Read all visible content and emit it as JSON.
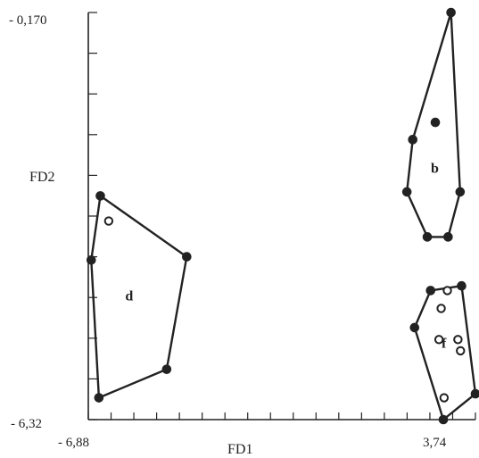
{
  "chart_data": {
    "type": "scatter",
    "xlabel": "FD1",
    "ylabel": "FD2",
    "xlim": [
      -6.88,
      3.74
    ],
    "ylim": [
      -6.32,
      -0.17
    ],
    "x_tick_labels": {
      "min": "- 6,88",
      "max": "3,74"
    },
    "y_tick_labels": {
      "min": "- 6,32",
      "max": "- 0,170"
    },
    "groups": [
      {
        "name": "b",
        "marker": "filled",
        "hull": [
          [
            3.07,
            -0.17
          ],
          [
            3.32,
            -2.88
          ],
          [
            2.99,
            -3.56
          ],
          [
            2.42,
            -3.56
          ],
          [
            1.86,
            -2.88
          ],
          [
            2.02,
            -2.09
          ]
        ],
        "points": [
          [
            3.07,
            -0.17
          ],
          [
            3.32,
            -2.88
          ],
          [
            2.99,
            -3.56
          ],
          [
            2.42,
            -3.56
          ],
          [
            1.86,
            -2.88
          ],
          [
            2.02,
            -2.09
          ],
          [
            2.64,
            -1.83
          ]
        ]
      },
      {
        "name": "d",
        "marker": "open",
        "hull": [
          [
            -6.55,
            -2.94
          ],
          [
            -4.18,
            -3.86
          ],
          [
            -4.73,
            -5.56
          ],
          [
            -6.59,
            -5.99
          ],
          [
            -6.8,
            -3.91
          ]
        ],
        "points": [
          [
            -6.55,
            -2.94
          ],
          [
            -4.18,
            -3.86
          ],
          [
            -4.73,
            -5.56
          ],
          [
            -6.59,
            -5.99
          ],
          [
            -6.8,
            -3.91
          ],
          [
            -6.32,
            -3.32
          ]
        ]
      },
      {
        "name": "f",
        "marker": "open",
        "hull": [
          [
            2.51,
            -4.37
          ],
          [
            3.36,
            -4.3
          ],
          [
            3.74,
            -5.93
          ],
          [
            2.86,
            -6.32
          ],
          [
            2.07,
            -4.93
          ]
        ],
        "points": [
          [
            2.51,
            -4.37
          ],
          [
            3.36,
            -4.3
          ],
          [
            3.74,
            -5.93
          ],
          [
            2.86,
            -6.32
          ],
          [
            2.07,
            -4.93
          ],
          [
            2.97,
            -4.37
          ],
          [
            2.8,
            -4.64
          ],
          [
            2.74,
            -5.11
          ],
          [
            3.26,
            -5.11
          ],
          [
            3.33,
            -5.28
          ],
          [
            2.88,
            -5.99
          ]
        ]
      }
    ]
  }
}
